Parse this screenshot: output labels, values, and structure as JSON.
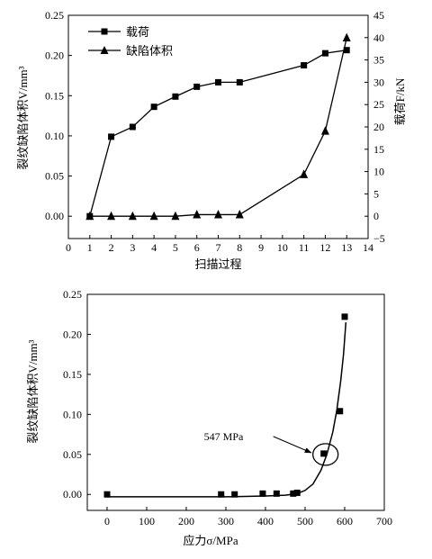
{
  "chart_data": [
    {
      "type": "line",
      "x_label": "扫描过程",
      "y_label": "裂纹缺陷体积V/mm³",
      "y2_label": "载荷F/kN",
      "xlim": [
        0,
        14
      ],
      "ylim": [
        0.0,
        0.25
      ],
      "y2lim": [
        -5,
        45
      ],
      "x_ticks": [
        0,
        1,
        2,
        3,
        4,
        5,
        6,
        7,
        8,
        9,
        10,
        11,
        12,
        13,
        14
      ],
      "y_ticks": [
        "0.00",
        "0.05",
        "0.10",
        "0.15",
        "0.20",
        "0.25"
      ],
      "y2_ticks": [
        "−5",
        "0",
        "5",
        "10",
        "15",
        "20",
        "25",
        "30",
        "35",
        "40",
        "45"
      ],
      "legend_position": "top-left",
      "series": [
        {
          "name": "载荷",
          "marker": "square",
          "axis": "right",
          "x": [
            1,
            2,
            3,
            4,
            5,
            6,
            7,
            8,
            11,
            12,
            13
          ],
          "values": [
            0,
            17.8,
            20,
            24.5,
            26.8,
            29,
            30,
            30,
            33.8,
            36.5,
            37.2
          ]
        },
        {
          "name": "缺陷体积",
          "marker": "triangle",
          "axis": "left",
          "x": [
            1,
            2,
            3,
            4,
            5,
            6,
            7,
            8,
            11,
            12,
            13
          ],
          "values": [
            0.0,
            0.0,
            0.0,
            0.0,
            0.0,
            0.002,
            0.002,
            0.002,
            0.052,
            0.106,
            0.222
          ]
        }
      ]
    },
    {
      "type": "scatter",
      "x_label": "应力σ/MPa",
      "y_label": "裂纹缺陷体积V/mm³",
      "xlim": [
        -50,
        700
      ],
      "ylim": [
        -0.02,
        0.25
      ],
      "x_ticks": [
        "0",
        "100",
        "200",
        "300",
        "400",
        "500",
        "600",
        "700"
      ],
      "y_ticks": [
        "0.00",
        "0.05",
        "0.10",
        "0.15",
        "0.20",
        "0.25"
      ],
      "annotation": "547 MPa",
      "annotation_point": [
        547,
        0.051
      ],
      "series": [
        {
          "marker": "square",
          "x": [
            0,
            288,
            322,
            393,
            428,
            470,
            480,
            547,
            588,
            600
          ],
          "values": [
            0.0,
            0.0,
            0.0,
            0.001,
            0.001,
            0.001,
            0.002,
            0.051,
            0.104,
            0.222
          ]
        }
      ],
      "fit_curve": {
        "x": [
          0,
          100,
          200,
          300,
          400,
          450,
          480,
          500,
          520,
          540,
          555,
          570,
          580,
          590,
          597,
          603
        ],
        "values": [
          -0.003,
          -0.003,
          -0.003,
          -0.003,
          -0.002,
          -0.001,
          0.001,
          0.005,
          0.013,
          0.03,
          0.05,
          0.078,
          0.105,
          0.142,
          0.175,
          0.215
        ]
      }
    }
  ]
}
